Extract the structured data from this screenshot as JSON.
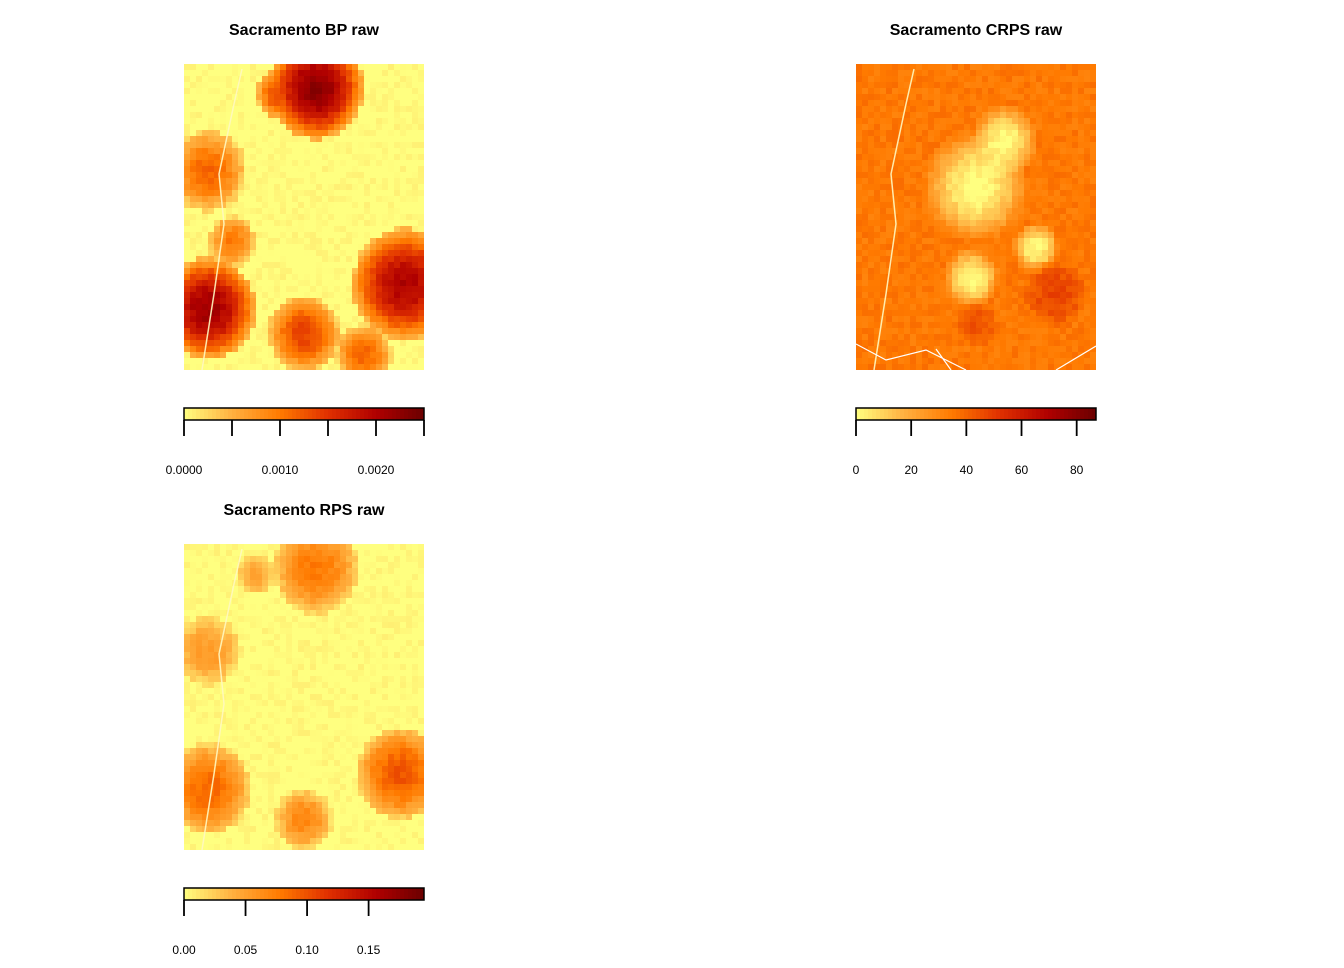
{
  "chart_data": [
    {
      "type": "heatmap",
      "title": "Sacramento BP raw",
      "colormap": [
        "#ffff80",
        "#ffb040",
        "#ff7a00",
        "#e03000",
        "#b00000",
        "#6a0000"
      ],
      "legend": {
        "min": 0,
        "max": 0.0025,
        "ticks": [
          "0.0000",
          "0.0010",
          "0.0020"
        ],
        "tick_values": [
          0,
          0.0005,
          0.001,
          0.0015,
          0.002,
          0.0025
        ],
        "labelled_values": [
          0,
          0.001,
          0.002
        ]
      },
      "regions": [
        {
          "cx": 0.55,
          "cy": 0.08,
          "r": 0.2,
          "v": 0.9
        },
        {
          "cx": 0.4,
          "cy": 0.1,
          "r": 0.1,
          "v": 0.55
        },
        {
          "cx": 0.1,
          "cy": 0.35,
          "r": 0.16,
          "v": 0.45
        },
        {
          "cx": 0.1,
          "cy": 0.8,
          "r": 0.2,
          "v": 0.85
        },
        {
          "cx": 0.2,
          "cy": 0.58,
          "r": 0.1,
          "v": 0.4
        },
        {
          "cx": 0.92,
          "cy": 0.72,
          "r": 0.22,
          "v": 0.8
        },
        {
          "cx": 0.5,
          "cy": 0.88,
          "r": 0.15,
          "v": 0.55
        },
        {
          "cx": 0.75,
          "cy": 0.95,
          "r": 0.12,
          "v": 0.45
        }
      ]
    },
    {
      "type": "heatmap",
      "title": "Sacramento CRPS raw",
      "colormap": [
        "#ffff80",
        "#ffb040",
        "#ff7a00",
        "#e03000",
        "#b00000",
        "#6a0000"
      ],
      "legend": {
        "min": 0,
        "max": 87,
        "ticks": [
          "0",
          "20",
          "40",
          "60",
          "80"
        ],
        "tick_values": [
          0,
          20,
          40,
          60,
          80
        ],
        "labelled_values": [
          0,
          20,
          40,
          60,
          80
        ]
      },
      "background_value": 0.4,
      "regions": [
        {
          "cx": 0.5,
          "cy": 0.4,
          "r": 0.22,
          "v": 0.0
        },
        {
          "cx": 0.62,
          "cy": 0.25,
          "r": 0.14,
          "v": 0.0
        },
        {
          "cx": 0.48,
          "cy": 0.7,
          "r": 0.12,
          "v": 0.0
        },
        {
          "cx": 0.75,
          "cy": 0.6,
          "r": 0.1,
          "v": 0.0
        },
        {
          "cx": 0.83,
          "cy": 0.75,
          "r": 0.14,
          "v": 0.55
        },
        {
          "cx": 0.5,
          "cy": 0.85,
          "r": 0.1,
          "v": 0.5
        }
      ]
    },
    {
      "type": "heatmap",
      "title": "Sacramento RPS raw",
      "colormap": [
        "#ffff80",
        "#ffb040",
        "#ff7a00",
        "#e03000",
        "#b00000",
        "#6a0000"
      ],
      "legend": {
        "min": 0,
        "max": 0.195,
        "ticks": [
          "0.00",
          "0.05",
          "0.10",
          "0.15"
        ],
        "tick_values": [
          0,
          0.05,
          0.1,
          0.15
        ],
        "labelled_values": [
          0,
          0.05,
          0.1,
          0.15
        ]
      },
      "regions": [
        {
          "cx": 0.55,
          "cy": 0.08,
          "r": 0.18,
          "v": 0.4
        },
        {
          "cx": 0.1,
          "cy": 0.35,
          "r": 0.14,
          "v": 0.28
        },
        {
          "cx": 0.1,
          "cy": 0.8,
          "r": 0.18,
          "v": 0.45
        },
        {
          "cx": 0.9,
          "cy": 0.75,
          "r": 0.18,
          "v": 0.5
        },
        {
          "cx": 0.5,
          "cy": 0.9,
          "r": 0.12,
          "v": 0.35
        },
        {
          "cx": 0.3,
          "cy": 0.1,
          "r": 0.08,
          "v": 0.25
        }
      ]
    }
  ]
}
